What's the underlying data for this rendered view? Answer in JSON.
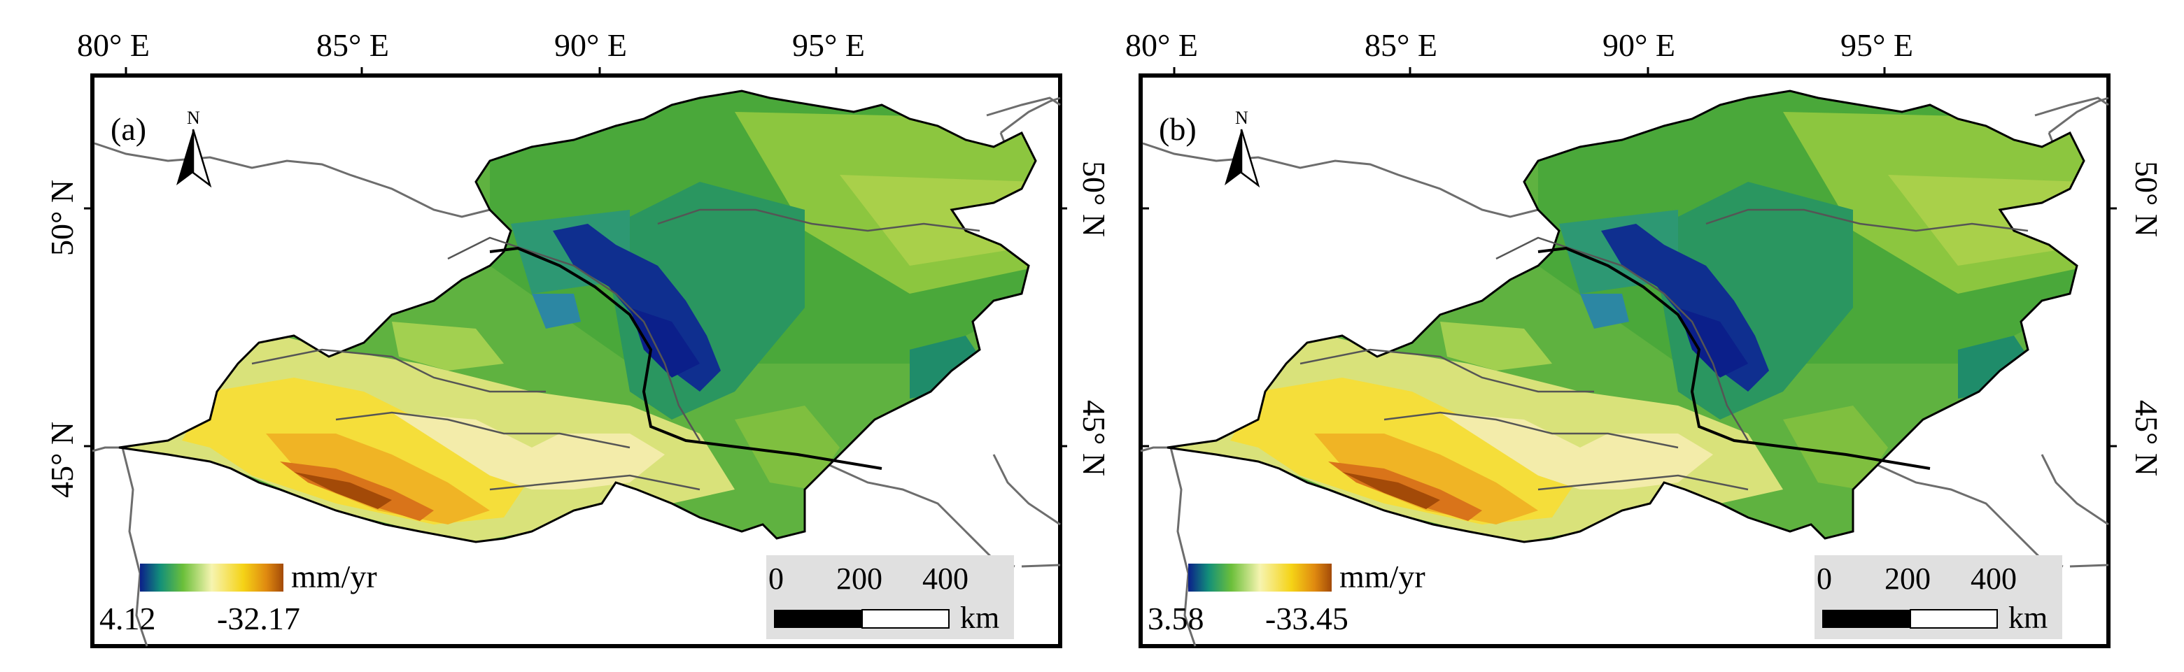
{
  "figure": {
    "x_ticks": [
      "80° E",
      "85° E",
      "90° E",
      "95° E"
    ],
    "y_ticks": [
      "50° N",
      "45° N"
    ]
  },
  "panels": [
    {
      "label": "(a)",
      "legend_unit": "mm/yr",
      "legend_min": "4.12",
      "legend_max": "-32.17",
      "scale_ticks": [
        "0",
        "200",
        "400"
      ],
      "scale_unit": "km",
      "north": "N"
    },
    {
      "label": "(b)",
      "legend_unit": "mm/yr",
      "legend_min": "3.58",
      "legend_max": "-33.45",
      "scale_ticks": [
        "0",
        "200",
        "400"
      ],
      "scale_unit": "km",
      "north": "N"
    }
  ],
  "colors": {
    "deep_blue": "#0b1f8a",
    "teal": "#128f7a",
    "green": "#3aa23c",
    "light_green": "#9acb3e",
    "pale_yellow": "#f4f1a0",
    "yellow": "#f5d316",
    "orange": "#e08a10",
    "brown": "#a34a08"
  }
}
